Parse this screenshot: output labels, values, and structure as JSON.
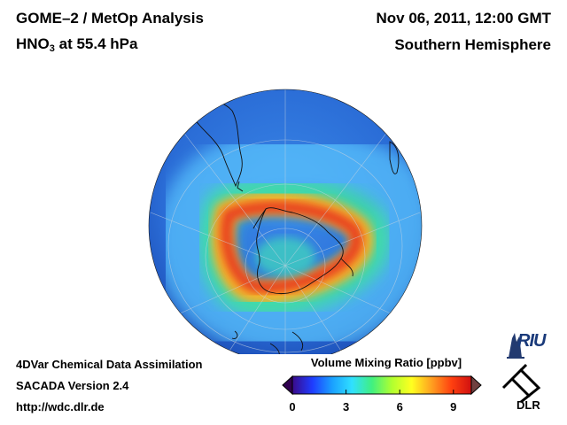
{
  "header": {
    "title": "GOME–2 / MetOp Analysis",
    "species": "HNO",
    "species_sub": "3",
    "level": " at 55.4 hPa",
    "datetime": "Nov 06, 2011, 12:00 GMT",
    "region": "Southern Hemisphere"
  },
  "footer": {
    "method": "4DVar Chemical Data Assimilation",
    "version": "SACADA Version 2.4",
    "url": "http://wdc.dlr.de"
  },
  "colorbar": {
    "title": "Volume Mixing Ratio [ppbv]",
    "ticks": [
      "0",
      "3",
      "6",
      "9"
    ],
    "tick_values": [
      0,
      3,
      6,
      9
    ],
    "min": 0,
    "max": 10,
    "colors": [
      "#3a0a8a",
      "#1f3cff",
      "#1aa0ff",
      "#30e0ff",
      "#40f080",
      "#b0ff30",
      "#ffff20",
      "#ffa020",
      "#ff4010",
      "#d01010"
    ]
  },
  "logos": {
    "riu": "RIU",
    "dlr": "DLR"
  },
  "map": {
    "projection": "orthographic",
    "hemisphere": "south",
    "background_color": "#2a6cd6",
    "high_concentration_color": "#e83a20"
  }
}
